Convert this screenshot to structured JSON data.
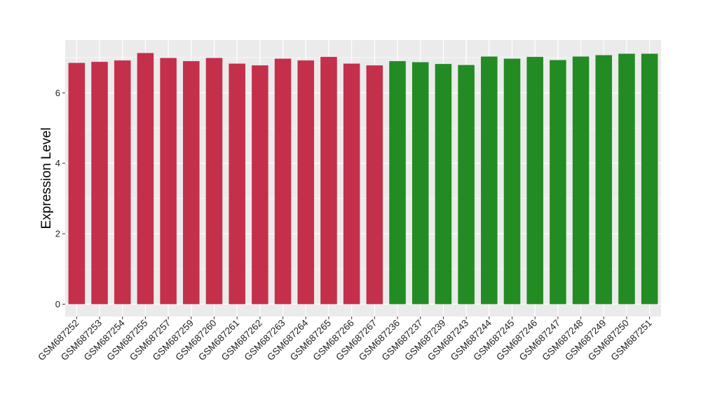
{
  "chart_data": {
    "type": "bar",
    "title": "",
    "xlabel": "",
    "ylabel": "Expression Level",
    "ylim": [
      -0.35,
      7.5
    ],
    "yticks": [
      0,
      2,
      4,
      6
    ],
    "grid": true,
    "legend": "none",
    "colors": {
      "group1": "#C4304A",
      "group2": "#238B23",
      "panel": "#EBEBEB",
      "gridline": "#FFFFFF"
    },
    "categories": [
      "GSM687252",
      "GSM687253",
      "GSM687254",
      "GSM687255",
      "GSM687257",
      "GSM687259",
      "GSM687260",
      "GSM687261",
      "GSM687262",
      "GSM687263",
      "GSM687264",
      "GSM687265",
      "GSM687266",
      "GSM687267",
      "GSM687236",
      "GSM687237",
      "GSM687239",
      "GSM687243",
      "GSM687244",
      "GSM687245",
      "GSM687246",
      "GSM687247",
      "GSM687248",
      "GSM687249",
      "GSM687250",
      "GSM687251"
    ],
    "values": [
      6.85,
      6.88,
      6.92,
      7.13,
      6.99,
      6.9,
      6.99,
      6.83,
      6.78,
      6.97,
      6.92,
      7.02,
      6.83,
      6.78,
      6.9,
      6.87,
      6.82,
      6.79,
      7.03,
      6.97,
      7.02,
      6.93,
      7.03,
      7.07,
      7.11,
      7.11
    ],
    "groups": [
      1,
      1,
      1,
      1,
      1,
      1,
      1,
      1,
      1,
      1,
      1,
      1,
      1,
      1,
      2,
      2,
      2,
      2,
      2,
      2,
      2,
      2,
      2,
      2,
      2,
      2
    ]
  }
}
